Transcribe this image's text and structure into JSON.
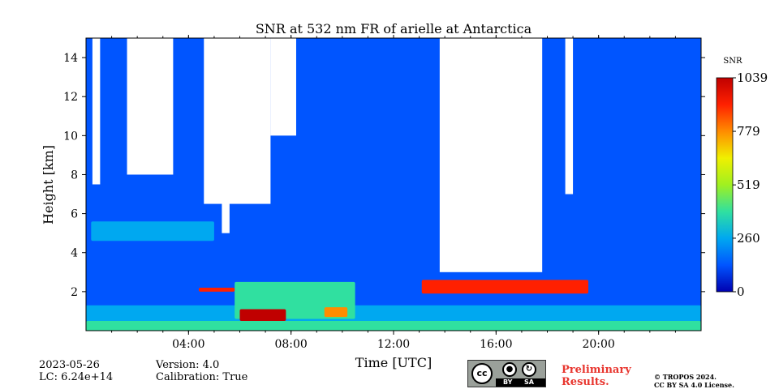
{
  "chart_data": {
    "type": "heatmap",
    "title": "SNR at 532 nm FR of arielle at Antarctica",
    "xlabel": "Time [UTC]",
    "ylabel": "Height [km]",
    "xlim_hours": [
      0,
      24
    ],
    "ylim_km": [
      0,
      15
    ],
    "x_ticks": [
      {
        "value": 4,
        "label": "04:00"
      },
      {
        "value": 8,
        "label": "08:00"
      },
      {
        "value": 12,
        "label": "12:00"
      },
      {
        "value": 16,
        "label": "16:00"
      },
      {
        "value": 20,
        "label": "20:00"
      }
    ],
    "y_ticks": [
      {
        "value": 2,
        "label": "2"
      },
      {
        "value": 4,
        "label": "4"
      },
      {
        "value": 6,
        "label": "6"
      },
      {
        "value": 8,
        "label": "8"
      },
      {
        "value": 10,
        "label": "10"
      },
      {
        "value": 12,
        "label": "12"
      },
      {
        "value": 14,
        "label": "14"
      }
    ],
    "colorbar": {
      "label": "SNR",
      "min": 0,
      "max": 1039,
      "ticks": [
        {
          "value": 0,
          "label": "0"
        },
        {
          "value": 260,
          "label": "260"
        },
        {
          "value": 519,
          "label": "519"
        },
        {
          "value": 779,
          "label": "779"
        },
        {
          "value": 1039,
          "label": "1039"
        }
      ],
      "colormap": [
        "#0000b0",
        "#0055ff",
        "#00a8f0",
        "#30e0a0",
        "#a0f020",
        "#f0f000",
        "#ff8c00",
        "#ff2000",
        "#c00000"
      ]
    },
    "background_snr": 120,
    "no_data_regions": [
      {
        "name": "cloud gap 1",
        "t0": 0.25,
        "t1": 0.55,
        "z0": 7.5,
        "z1": 15
      },
      {
        "name": "cloud gap 2",
        "t0": 1.6,
        "t1": 3.4,
        "z0": 8.0,
        "z1": 15
      },
      {
        "name": "cloud gap 3",
        "t0": 4.6,
        "t1": 7.2,
        "z0": 6.5,
        "z1": 15
      },
      {
        "name": "cloud gap 4",
        "t0": 5.3,
        "t1": 5.6,
        "z0": 5.0,
        "z1": 7.0
      },
      {
        "name": "cloud gap 5",
        "t0": 7.2,
        "t1": 8.2,
        "z0": 10.0,
        "z1": 15
      },
      {
        "name": "cloud gap 6",
        "t0": 13.8,
        "t1": 17.8,
        "z0": 3.0,
        "z1": 15
      },
      {
        "name": "cloud gap 7",
        "t0": 18.7,
        "t1": 19.0,
        "z0": 7.0,
        "z1": 15
      }
    ],
    "features": [
      {
        "name": "surface layer",
        "t0": 0,
        "t1": 24,
        "z0": 0.0,
        "z1": 0.5,
        "snr": 420
      },
      {
        "name": "residual layer",
        "t0": 0,
        "t1": 24,
        "z0": 0.5,
        "z1": 1.3,
        "snr": 230
      },
      {
        "name": "elevated aerosol layer",
        "t0": 0.2,
        "t1": 5.0,
        "z0": 4.6,
        "z1": 5.6,
        "snr": 240
      },
      {
        "name": "boundary layer plume",
        "t0": 5.8,
        "t1": 10.5,
        "z0": 0.6,
        "z1": 2.5,
        "snr": 330
      },
      {
        "name": "strong backscatter 06:30",
        "t0": 6.0,
        "t1": 7.8,
        "z0": 0.5,
        "z1": 1.1,
        "snr": 980
      },
      {
        "name": "strong backscatter 09:30",
        "t0": 9.3,
        "t1": 10.2,
        "z0": 0.7,
        "z1": 1.2,
        "snr": 820
      },
      {
        "name": "cloud base 05:00",
        "t0": 4.4,
        "t1": 5.8,
        "z0": 2.0,
        "z1": 2.2,
        "snr": 940
      },
      {
        "name": "cloud base 13:00-19:30",
        "t0": 13.1,
        "t1": 19.6,
        "z0": 1.9,
        "z1": 2.6,
        "snr": 960
      }
    ]
  },
  "info": {
    "date": "2023-05-26",
    "lc": "LC: 6.24e+14",
    "version": "Version: 4.0",
    "calibration": "Calibration: True",
    "preliminary_line1": "Preliminary",
    "preliminary_line2": "Results.",
    "copyright_line1": "© TROPOS 2024.",
    "copyright_line2": "CC BY SA 4.0 License."
  },
  "license_badge": {
    "cc": "cc",
    "by": "BY",
    "sa": "SA"
  }
}
